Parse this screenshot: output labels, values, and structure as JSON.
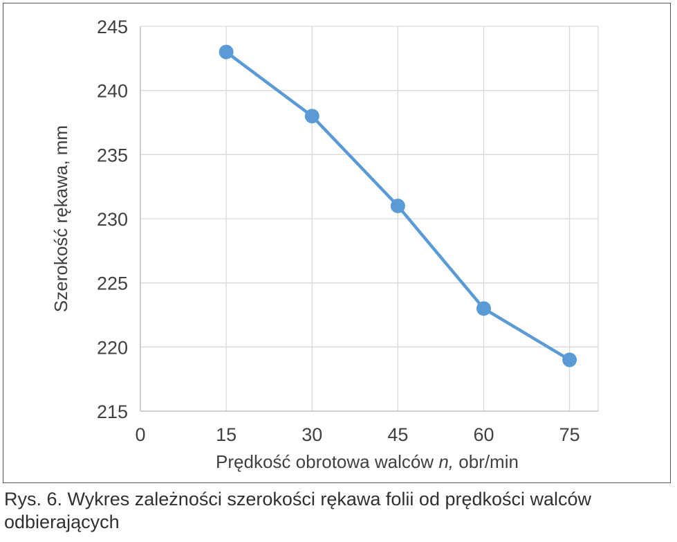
{
  "chart_data": {
    "type": "line",
    "x": [
      15,
      30,
      45,
      60,
      75
    ],
    "series": [
      {
        "values": [
          243,
          238,
          231,
          223,
          219
        ],
        "color": "#5b9bd5"
      }
    ],
    "xlabel": "Prędkość obrotowa walców",
    "xlabel_italic": "n,",
    "xlabel_unit": "obr/min",
    "ylabel": "Szerokość rękawa, mm",
    "xlim": [
      0,
      80
    ],
    "xticks": [
      0,
      15,
      30,
      45,
      60,
      75
    ],
    "ylim": [
      215,
      245
    ],
    "yticks": [
      215,
      220,
      225,
      230,
      235,
      240,
      245
    ],
    "grid": true,
    "legend": "none"
  },
  "caption": {
    "line1": "Rys. 6. Wykres zależności szerokości rękawa folii od prędkości walców",
    "line2": "odbierających"
  }
}
